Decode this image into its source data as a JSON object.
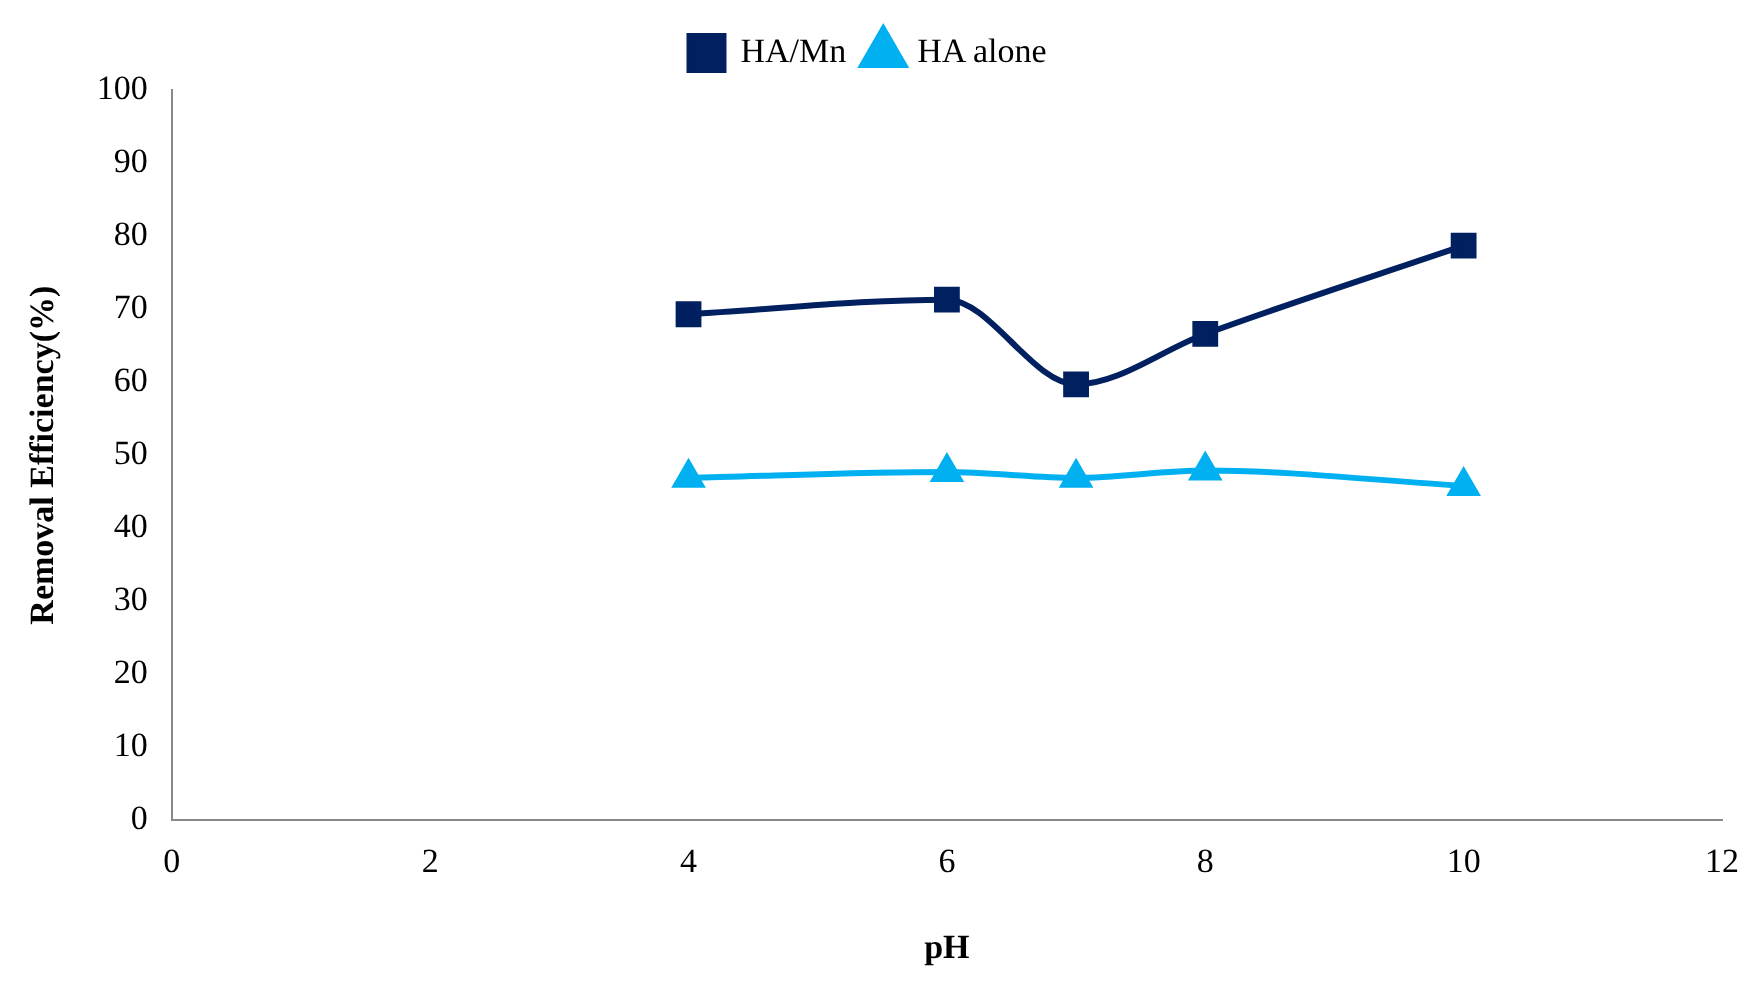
{
  "chart_data": {
    "type": "line",
    "xlabel": "pH",
    "ylabel": "Removal Efficiency(%)",
    "xlim": [
      0,
      12
    ],
    "xticks": [
      0,
      2,
      4,
      6,
      8,
      10,
      12
    ],
    "ylim": [
      0,
      100
    ],
    "yticks": [
      0,
      10,
      20,
      30,
      40,
      50,
      60,
      70,
      80,
      90,
      100
    ],
    "grid": false,
    "legend": "top",
    "series": [
      {
        "name": "HA/Mn",
        "color": "#002060",
        "marker": "square",
        "x": [
          4,
          6,
          7,
          8,
          10
        ],
        "values": [
          69.3,
          71.3,
          59.7,
          66.6,
          78.7
        ]
      },
      {
        "name": "HA alone",
        "color": "#00b0f0",
        "marker": "triangle",
        "x": [
          4,
          6,
          7,
          8,
          10
        ],
        "values": [
          46.9,
          47.7,
          46.9,
          47.9,
          45.8
        ]
      }
    ]
  }
}
